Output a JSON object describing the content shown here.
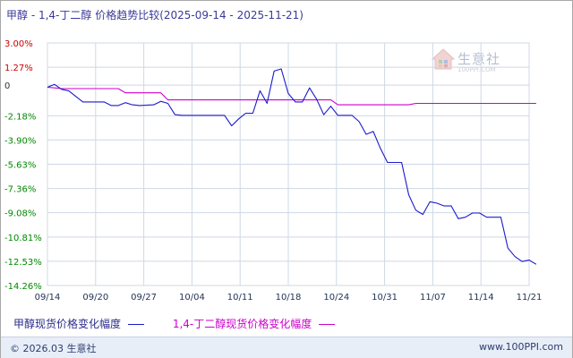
{
  "header": {
    "title": "甲醇 - 1,4-丁二醇 价格趋势比较(2025-09-14 - 2025-11-21)"
  },
  "watermark": {
    "name": "生意社",
    "url": "100PPI.COM"
  },
  "footer": {
    "copyright": "© 2026.03 生意社",
    "url": "www.100PPI.com"
  },
  "chart_data": {
    "type": "line",
    "title": "甲醇 - 1,4-丁二醇 价格趋势比较(2025-09-14 - 2025-11-21)",
    "x_tick_labels": [
      "09/14",
      "09/20",
      "09/27",
      "10/04",
      "10/11",
      "10/18",
      "10/24",
      "10/31",
      "11/07",
      "11/14",
      "11/21"
    ],
    "x_range": [
      "2025-09-14",
      "2025-11-21"
    ],
    "ylim": [
      -14.26,
      3.0
    ],
    "y_ticks": [
      {
        "value": 3.0,
        "label": "3.00%",
        "color": "#cc0000"
      },
      {
        "value": 1.27,
        "label": "1.27%",
        "color": "#cc0000"
      },
      {
        "value": 0,
        "label": "0",
        "color": "#333333"
      },
      {
        "value": -2.18,
        "label": "-2.18%",
        "color": "#008800"
      },
      {
        "value": -3.9,
        "label": "-3.90%",
        "color": "#008800"
      },
      {
        "value": -5.63,
        "label": "-5.63%",
        "color": "#008800"
      },
      {
        "value": -7.36,
        "label": "-7.36%",
        "color": "#008800"
      },
      {
        "value": -9.08,
        "label": "-9.08%",
        "color": "#008800"
      },
      {
        "value": -10.81,
        "label": "-10.81%",
        "color": "#008800"
      },
      {
        "value": -12.53,
        "label": "-12.53%",
        "color": "#008800"
      },
      {
        "value": -14.26,
        "label": "-14.26%",
        "color": "#008800"
      }
    ],
    "grid": true,
    "legend_position": "bottom-left",
    "series": [
      {
        "name": "甲醇现货价格变化幅度",
        "color": "#1a1acc",
        "points": [
          [
            "2025-09-14",
            -0.15
          ],
          [
            "2025-09-15",
            0.05
          ],
          [
            "2025-09-16",
            -0.3
          ],
          [
            "2025-09-17",
            -0.4
          ],
          [
            "2025-09-19",
            -1.2
          ],
          [
            "2025-09-20",
            -1.2
          ],
          [
            "2025-09-21",
            -1.2
          ],
          [
            "2025-09-22",
            -1.2
          ],
          [
            "2025-09-23",
            -1.45
          ],
          [
            "2025-09-24",
            -1.45
          ],
          [
            "2025-09-25",
            -1.25
          ],
          [
            "2025-09-26",
            -1.4
          ],
          [
            "2025-09-27",
            -1.45
          ],
          [
            "2025-09-29",
            -1.4
          ],
          [
            "2025-09-30",
            -1.15
          ],
          [
            "2025-10-01",
            -1.3
          ],
          [
            "2025-10-02",
            -2.1
          ],
          [
            "2025-10-03",
            -2.15
          ],
          [
            "2025-10-04",
            -2.15
          ],
          [
            "2025-10-05",
            -2.15
          ],
          [
            "2025-10-07",
            -2.15
          ],
          [
            "2025-10-08",
            -2.15
          ],
          [
            "2025-10-09",
            -2.15
          ],
          [
            "2025-10-10",
            -2.9
          ],
          [
            "2025-10-11",
            -2.4
          ],
          [
            "2025-10-12",
            -2.0
          ],
          [
            "2025-10-13",
            -2.0
          ],
          [
            "2025-10-14",
            -0.4
          ],
          [
            "2025-10-15",
            -1.3
          ],
          [
            "2025-10-16",
            1.0
          ],
          [
            "2025-10-17",
            1.15
          ],
          [
            "2025-10-18",
            -0.6
          ],
          [
            "2025-10-19",
            -1.2
          ],
          [
            "2025-10-20",
            -1.2
          ],
          [
            "2025-10-21",
            -0.2
          ],
          [
            "2025-10-22",
            -1.0
          ],
          [
            "2025-10-23",
            -2.1
          ],
          [
            "2025-10-24",
            -1.5
          ],
          [
            "2025-10-25",
            -2.15
          ],
          [
            "2025-10-27",
            -2.15
          ],
          [
            "2025-10-28",
            -2.6
          ],
          [
            "2025-10-29",
            -3.5
          ],
          [
            "2025-10-30",
            -3.3
          ],
          [
            "2025-10-31",
            -4.5
          ],
          [
            "2025-11-01",
            -5.5
          ],
          [
            "2025-11-03",
            -5.5
          ],
          [
            "2025-11-04",
            -7.8
          ],
          [
            "2025-11-05",
            -8.9
          ],
          [
            "2025-11-06",
            -9.2
          ],
          [
            "2025-11-07",
            -8.3
          ],
          [
            "2025-11-08",
            -8.4
          ],
          [
            "2025-11-09",
            -8.6
          ],
          [
            "2025-11-10",
            -8.6
          ],
          [
            "2025-11-11",
            -9.5
          ],
          [
            "2025-11-12",
            -9.4
          ],
          [
            "2025-11-13",
            -9.1
          ],
          [
            "2025-11-14",
            -9.1
          ],
          [
            "2025-11-15",
            -9.4
          ],
          [
            "2025-11-16",
            -9.4
          ],
          [
            "2025-11-17",
            -9.4
          ],
          [
            "2025-11-18",
            -11.6
          ],
          [
            "2025-11-19",
            -12.2
          ],
          [
            "2025-11-20",
            -12.55
          ],
          [
            "2025-11-21",
            -12.45
          ],
          [
            "2025-11-22",
            -12.75
          ]
        ]
      },
      {
        "name": "1,4-丁二醇现货价格变化幅度",
        "color": "#cc00cc",
        "points": [
          [
            "2025-09-14",
            -0.15
          ],
          [
            "2025-09-15",
            -0.2
          ],
          [
            "2025-09-16",
            -0.25
          ],
          [
            "2025-09-17",
            -0.25
          ],
          [
            "2025-09-24",
            -0.25
          ],
          [
            "2025-09-25",
            -0.55
          ],
          [
            "2025-09-30",
            -0.55
          ],
          [
            "2025-10-01",
            -1.05
          ],
          [
            "2025-10-24",
            -1.05
          ],
          [
            "2025-10-25",
            -1.4
          ],
          [
            "2025-11-04",
            -1.4
          ],
          [
            "2025-11-05",
            -1.3
          ],
          [
            "2025-11-22",
            -1.3
          ]
        ]
      }
    ]
  }
}
